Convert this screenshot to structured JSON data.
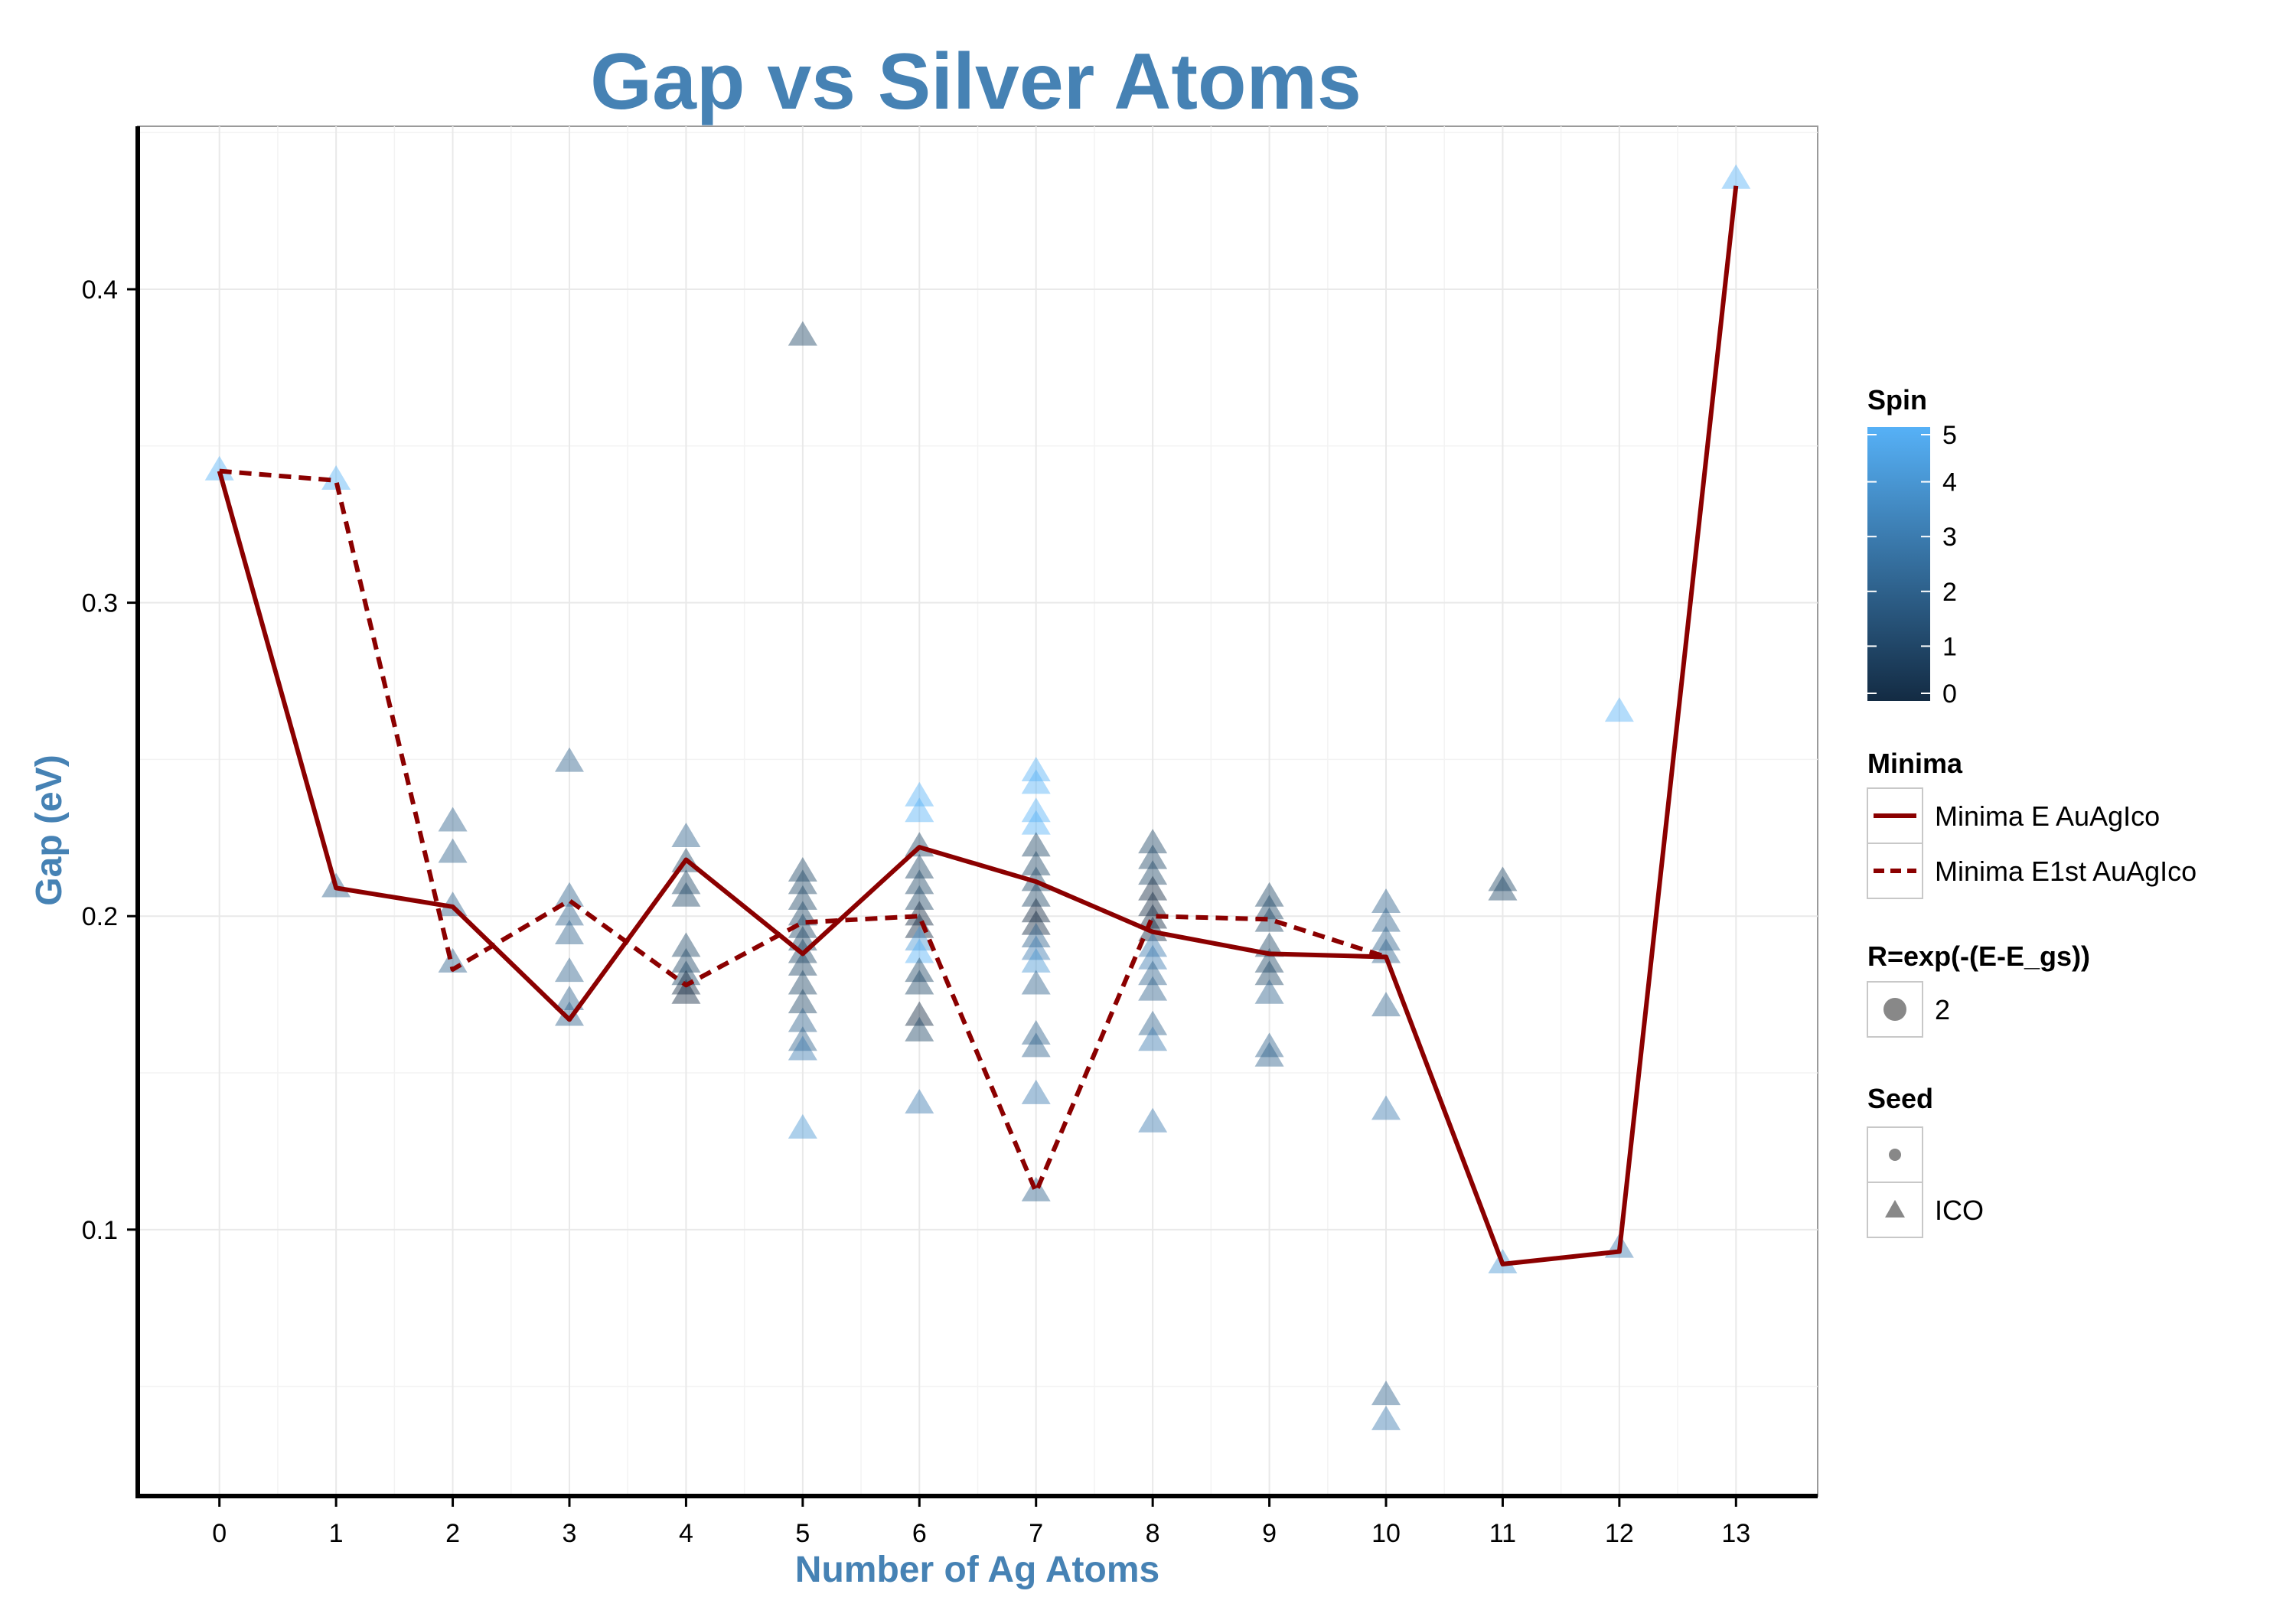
{
  "chart_data": {
    "type": "scatter",
    "title": "Gap vs Silver Atoms",
    "xlabel": "Number of Ag Atoms",
    "ylabel": "Gap (eV)",
    "x_ticks": [
      0,
      1,
      2,
      3,
      4,
      5,
      6,
      7,
      8,
      9,
      10,
      11,
      12,
      13
    ],
    "y_ticks": [
      0.1,
      0.2,
      0.3,
      0.4
    ],
    "y_tick_labels": [
      "0.1",
      "0.2",
      "0.3",
      "0.4"
    ],
    "xlim": [
      -0.7,
      13.7
    ],
    "ylim": [
      0.015,
      0.452
    ],
    "grid": true,
    "colors": {
      "accent": "#4682B4",
      "line": "#8B0000",
      "spin_low": "#132B43",
      "spin_high": "#56B1F7",
      "point_gray": "#6F8294"
    },
    "points": [
      {
        "x": 0,
        "y": 0.342,
        "spin": 5
      },
      {
        "x": 1,
        "y": 0.339,
        "spin": 5
      },
      {
        "x": 1,
        "y": 0.209,
        "spin": 2
      },
      {
        "x": 2,
        "y": 0.23,
        "spin": 2
      },
      {
        "x": 2,
        "y": 0.22,
        "spin": 2
      },
      {
        "x": 2,
        "y": 0.203,
        "spin": 2
      },
      {
        "x": 2,
        "y": 0.185,
        "spin": 2
      },
      {
        "x": 3,
        "y": 0.249,
        "spin": 2
      },
      {
        "x": 3,
        "y": 0.206,
        "spin": 2
      },
      {
        "x": 3,
        "y": 0.2,
        "spin": 2
      },
      {
        "x": 3,
        "y": 0.194,
        "spin": 2
      },
      {
        "x": 3,
        "y": 0.182,
        "spin": 2
      },
      {
        "x": 3,
        "y": 0.173,
        "spin": 2
      },
      {
        "x": 3,
        "y": 0.168,
        "spin": 2
      },
      {
        "x": 4,
        "y": 0.225,
        "spin": 2
      },
      {
        "x": 4,
        "y": 0.217,
        "spin": 1
      },
      {
        "x": 4,
        "y": 0.21,
        "spin": 1
      },
      {
        "x": 4,
        "y": 0.206,
        "spin": 1
      },
      {
        "x": 4,
        "y": 0.19,
        "spin": 1
      },
      {
        "x": 4,
        "y": 0.185,
        "spin": 1
      },
      {
        "x": 4,
        "y": 0.181,
        "spin": 1
      },
      {
        "x": 4,
        "y": 0.178,
        "spin": 0
      },
      {
        "x": 4,
        "y": 0.175,
        "spin": 0
      },
      {
        "x": 5,
        "y": 0.385,
        "spin": 1
      },
      {
        "x": 5,
        "y": 0.214,
        "spin": 1
      },
      {
        "x": 5,
        "y": 0.21,
        "spin": 1
      },
      {
        "x": 5,
        "y": 0.205,
        "spin": 1
      },
      {
        "x": 5,
        "y": 0.2,
        "spin": 1
      },
      {
        "x": 5,
        "y": 0.196,
        "spin": 1
      },
      {
        "x": 5,
        "y": 0.192,
        "spin": 1
      },
      {
        "x": 5,
        "y": 0.188,
        "spin": 1
      },
      {
        "x": 5,
        "y": 0.184,
        "spin": 1
      },
      {
        "x": 5,
        "y": 0.178,
        "spin": 1
      },
      {
        "x": 5,
        "y": 0.172,
        "spin": 1
      },
      {
        "x": 5,
        "y": 0.166,
        "spin": 2
      },
      {
        "x": 5,
        "y": 0.16,
        "spin": 2
      },
      {
        "x": 5,
        "y": 0.157,
        "spin": 3
      },
      {
        "x": 5,
        "y": 0.132,
        "spin": 4
      },
      {
        "x": 6,
        "y": 0.238,
        "spin": 5
      },
      {
        "x": 6,
        "y": 0.233,
        "spin": 5
      },
      {
        "x": 6,
        "y": 0.222,
        "spin": 1
      },
      {
        "x": 6,
        "y": 0.215,
        "spin": 1
      },
      {
        "x": 6,
        "y": 0.21,
        "spin": 1
      },
      {
        "x": 6,
        "y": 0.205,
        "spin": 1
      },
      {
        "x": 6,
        "y": 0.2,
        "spin": 0
      },
      {
        "x": 6,
        "y": 0.196,
        "spin": 0
      },
      {
        "x": 6,
        "y": 0.192,
        "spin": 4
      },
      {
        "x": 6,
        "y": 0.188,
        "spin": 5
      },
      {
        "x": 6,
        "y": 0.182,
        "spin": 1
      },
      {
        "x": 6,
        "y": 0.178,
        "spin": 1
      },
      {
        "x": 6,
        "y": 0.168,
        "spin": 0
      },
      {
        "x": 6,
        "y": 0.163,
        "spin": 1
      },
      {
        "x": 6,
        "y": 0.14,
        "spin": 3
      },
      {
        "x": 7,
        "y": 0.246,
        "spin": 5
      },
      {
        "x": 7,
        "y": 0.242,
        "spin": 5
      },
      {
        "x": 7,
        "y": 0.233,
        "spin": 5
      },
      {
        "x": 7,
        "y": 0.229,
        "spin": 5
      },
      {
        "x": 7,
        "y": 0.222,
        "spin": 1
      },
      {
        "x": 7,
        "y": 0.216,
        "spin": 1
      },
      {
        "x": 7,
        "y": 0.211,
        "spin": 1
      },
      {
        "x": 7,
        "y": 0.206,
        "spin": 1
      },
      {
        "x": 7,
        "y": 0.201,
        "spin": 0
      },
      {
        "x": 7,
        "y": 0.197,
        "spin": 0
      },
      {
        "x": 7,
        "y": 0.193,
        "spin": 2
      },
      {
        "x": 7,
        "y": 0.189,
        "spin": 3
      },
      {
        "x": 7,
        "y": 0.185,
        "spin": 4
      },
      {
        "x": 7,
        "y": 0.178,
        "spin": 2
      },
      {
        "x": 7,
        "y": 0.162,
        "spin": 2
      },
      {
        "x": 7,
        "y": 0.158,
        "spin": 2
      },
      {
        "x": 7,
        "y": 0.143,
        "spin": 3
      },
      {
        "x": 7,
        "y": 0.112,
        "spin": 2
      },
      {
        "x": 8,
        "y": 0.223,
        "spin": 1
      },
      {
        "x": 8,
        "y": 0.218,
        "spin": 1
      },
      {
        "x": 8,
        "y": 0.213,
        "spin": 1
      },
      {
        "x": 8,
        "y": 0.208,
        "spin": 0
      },
      {
        "x": 8,
        "y": 0.203,
        "spin": 0
      },
      {
        "x": 8,
        "y": 0.199,
        "spin": 0
      },
      {
        "x": 8,
        "y": 0.195,
        "spin": 0
      },
      {
        "x": 8,
        "y": 0.19,
        "spin": 3
      },
      {
        "x": 8,
        "y": 0.186,
        "spin": 3
      },
      {
        "x": 8,
        "y": 0.181,
        "spin": 2
      },
      {
        "x": 8,
        "y": 0.176,
        "spin": 2
      },
      {
        "x": 8,
        "y": 0.165,
        "spin": 2
      },
      {
        "x": 8,
        "y": 0.16,
        "spin": 3
      },
      {
        "x": 8,
        "y": 0.134,
        "spin": 3
      },
      {
        "x": 9,
        "y": 0.206,
        "spin": 1
      },
      {
        "x": 9,
        "y": 0.202,
        "spin": 1
      },
      {
        "x": 9,
        "y": 0.198,
        "spin": 1
      },
      {
        "x": 9,
        "y": 0.19,
        "spin": 1
      },
      {
        "x": 9,
        "y": 0.185,
        "spin": 1
      },
      {
        "x": 9,
        "y": 0.181,
        "spin": 1
      },
      {
        "x": 9,
        "y": 0.175,
        "spin": 2
      },
      {
        "x": 9,
        "y": 0.158,
        "spin": 2
      },
      {
        "x": 9,
        "y": 0.155,
        "spin": 2
      },
      {
        "x": 10,
        "y": 0.204,
        "spin": 2
      },
      {
        "x": 10,
        "y": 0.198,
        "spin": 2
      },
      {
        "x": 10,
        "y": 0.192,
        "spin": 2
      },
      {
        "x": 10,
        "y": 0.188,
        "spin": 2
      },
      {
        "x": 10,
        "y": 0.171,
        "spin": 2
      },
      {
        "x": 10,
        "y": 0.138,
        "spin": 3
      },
      {
        "x": 10,
        "y": 0.047,
        "spin": 2
      },
      {
        "x": 10,
        "y": 0.039,
        "spin": 3
      },
      {
        "x": 11,
        "y": 0.211,
        "spin": 1
      },
      {
        "x": 11,
        "y": 0.208,
        "spin": 1
      },
      {
        "x": 11,
        "y": 0.089,
        "spin": 4
      },
      {
        "x": 12,
        "y": 0.265,
        "spin": 5
      },
      {
        "x": 12,
        "y": 0.094,
        "spin": 3
      },
      {
        "x": 13,
        "y": 0.435,
        "spin": 5
      }
    ],
    "series": [
      {
        "name": "Minima E AuAgIco",
        "style": "solid",
        "x": [
          0,
          1,
          2,
          3,
          4,
          5,
          6,
          7,
          8,
          9,
          10,
          11,
          12,
          13
        ],
        "y": [
          0.342,
          0.209,
          0.203,
          0.167,
          0.218,
          0.188,
          0.222,
          0.211,
          0.195,
          0.188,
          0.187,
          0.089,
          0.093,
          0.433
        ]
      },
      {
        "name": "Minima E1st AuAgIco",
        "style": "dashed",
        "x": [
          0,
          1,
          2,
          3,
          4,
          5,
          6,
          7,
          8,
          9,
          10
        ],
        "y": [
          0.342,
          0.339,
          0.183,
          0.205,
          0.178,
          0.198,
          0.2,
          0.112,
          0.2,
          0.199,
          0.187
        ]
      }
    ],
    "legend": {
      "placement": "right",
      "spin": {
        "title": "Spin",
        "ticks": [
          "5",
          "4",
          "3",
          "2",
          "1",
          "0"
        ]
      },
      "minima": {
        "title": "Minima",
        "items": [
          "Minima E AuAgIco",
          "Minima E1st AuAgIco"
        ]
      },
      "size": {
        "title": "R=exp(-(E-E_gs))",
        "items": [
          "2"
        ]
      },
      "seed": {
        "title": "Seed",
        "items": [
          "",
          "ICO"
        ]
      }
    }
  }
}
